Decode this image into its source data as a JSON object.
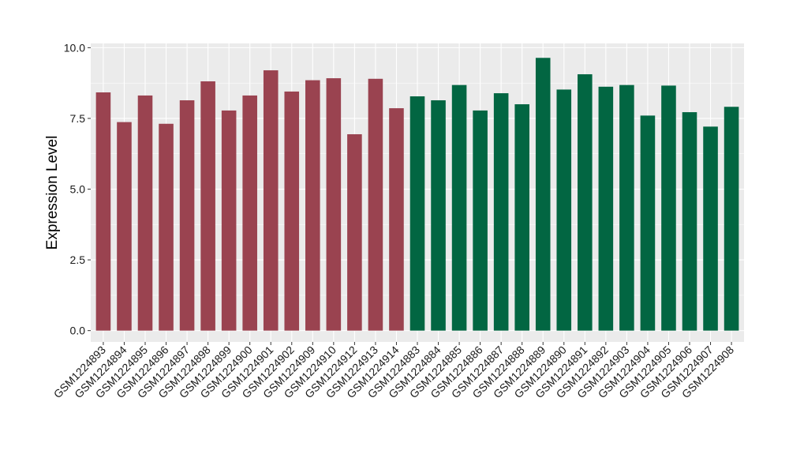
{
  "chart_data": {
    "type": "bar",
    "title": "",
    "xlabel": "",
    "ylabel": "Expression Level",
    "ylim": [
      -0.4,
      10.15
    ],
    "yticks": [
      "0.0",
      "2.5",
      "5.0",
      "7.5",
      "10.0"
    ],
    "grid": true,
    "legend": "none",
    "panel_background": "#ebebeb",
    "categories": [
      "GSM1224893",
      "GSM1224894",
      "GSM1224895",
      "GSM1224896",
      "GSM1224897",
      "GSM1224898",
      "GSM1224899",
      "GSM1224900",
      "GSM1224901",
      "GSM1224902",
      "GSM1224909",
      "GSM1224910",
      "GSM1224912",
      "GSM1224913",
      "GSM1224914",
      "GSM1224883",
      "GSM1224884",
      "GSM1224885",
      "GSM1224886",
      "GSM1224887",
      "GSM1224888",
      "GSM1224889",
      "GSM1224890",
      "GSM1224891",
      "GSM1224892",
      "GSM1224903",
      "GSM1224904",
      "GSM1224905",
      "GSM1224906",
      "GSM1224907",
      "GSM1224908"
    ],
    "values": [
      8.42,
      7.37,
      8.31,
      7.31,
      8.14,
      8.81,
      7.78,
      8.31,
      9.2,
      8.45,
      8.85,
      8.92,
      6.94,
      8.9,
      7.86,
      8.28,
      8.14,
      8.68,
      7.78,
      8.39,
      8.0,
      9.64,
      8.52,
      9.06,
      8.62,
      8.68,
      7.6,
      8.66,
      7.72,
      7.21,
      7.91
    ],
    "colors": [
      "#9a4350",
      "#9a4350",
      "#9a4350",
      "#9a4350",
      "#9a4350",
      "#9a4350",
      "#9a4350",
      "#9a4350",
      "#9a4350",
      "#9a4350",
      "#9a4350",
      "#9a4350",
      "#9a4350",
      "#9a4350",
      "#9a4350",
      "#026642",
      "#026642",
      "#026642",
      "#026642",
      "#026642",
      "#026642",
      "#026642",
      "#026642",
      "#026642",
      "#026642",
      "#026642",
      "#026642",
      "#026642",
      "#026642",
      "#026642",
      "#026642"
    ]
  }
}
